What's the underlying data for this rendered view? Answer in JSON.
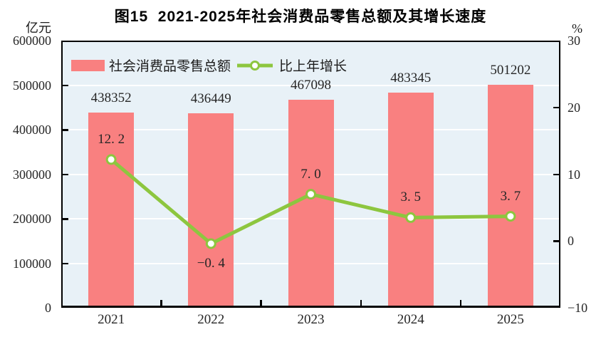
{
  "title": "图15  2021-2025年社会消费品零售总额及其增长速度",
  "left_axis_unit": "亿元",
  "right_axis_unit": "%",
  "legend": {
    "bars": "社会消费品零售总额",
    "line": "比上年增长"
  },
  "colors": {
    "bar": "#f98080",
    "line": "#8dc63f",
    "marker_fill": "#ffffff",
    "plot_bg": "#e8f1f7",
    "grid": "#ffffff",
    "axis": "#000000",
    "text": "#262626"
  },
  "chart_data": {
    "type": "bar+line",
    "title": "图15  2021-2025年社会消费品零售总额及其增长速度",
    "categories": [
      "2021",
      "2022",
      "2023",
      "2024",
      "2025"
    ],
    "series": [
      {
        "name": "社会消费品零售总额",
        "type": "bar",
        "axis": "left",
        "values": [
          438352,
          436449,
          467098,
          483345,
          501202
        ],
        "labels": [
          "438352",
          "436449",
          "467098",
          "483345",
          "501202"
        ]
      },
      {
        "name": "比上年增长",
        "type": "line",
        "axis": "right",
        "values": [
          12.2,
          -0.4,
          7.0,
          3.5,
          3.7
        ],
        "labels": [
          "12. 2",
          "−0. 4",
          "7. 0",
          "3. 5",
          "3. 7"
        ]
      }
    ],
    "left_axis": {
      "unit": "亿元",
      "min": 0,
      "max": 600000,
      "tick_step": 100000,
      "tick_labels": [
        "600000",
        "500000",
        "400000",
        "300000",
        "200000",
        "100000",
        "0"
      ]
    },
    "right_axis": {
      "unit": "%",
      "min": -10,
      "max": 30,
      "tick_step": 10,
      "tick_labels": [
        "30",
        "20",
        "10",
        "0",
        "−10"
      ]
    },
    "grid": true,
    "legend_position": "top-left-inside"
  }
}
